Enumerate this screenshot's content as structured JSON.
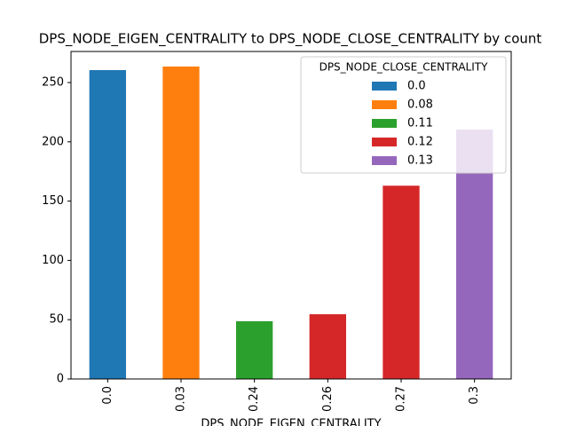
{
  "chart_data": {
    "type": "stacked_bar",
    "title": "DPS_NODE_EIGEN_CENTRALITY to DPS_NODE_CLOSE_CENTRALITY by count",
    "x_label": "DPS_NODE_EIGEN_CENTRALITY",
    "categories": [
      "0.0",
      "0.03",
      "0.24",
      "0.26",
      "0.27",
      "0.3"
    ],
    "legend_title": "DPS_NODE_CLOSE_CENTRALITY",
    "legend_position": "upper right",
    "series": [
      {
        "name": "0.0",
        "color": "#1f77b4",
        "values": [
          260.5,
          null,
          null,
          null,
          null,
          null
        ]
      },
      {
        "name": "0.08",
        "color": "#ff7f0e",
        "values": [
          null,
          263.5,
          null,
          null,
          null,
          null
        ]
      },
      {
        "name": "0.11",
        "color": "#2ca02c",
        "values": [
          null,
          null,
          48.7,
          null,
          null,
          null
        ]
      },
      {
        "name": "0.12",
        "color": "#d62728",
        "values": [
          null,
          null,
          null,
          54.6,
          163,
          null
        ]
      },
      {
        "name": "0.13",
        "color": "#9467bd",
        "values": [
          null,
          null,
          null,
          null,
          null,
          210.3
        ]
      }
    ],
    "ylim": [
      0,
      276.2
    ],
    "yticks": [
      0,
      50,
      100,
      150,
      200,
      250
    ]
  }
}
